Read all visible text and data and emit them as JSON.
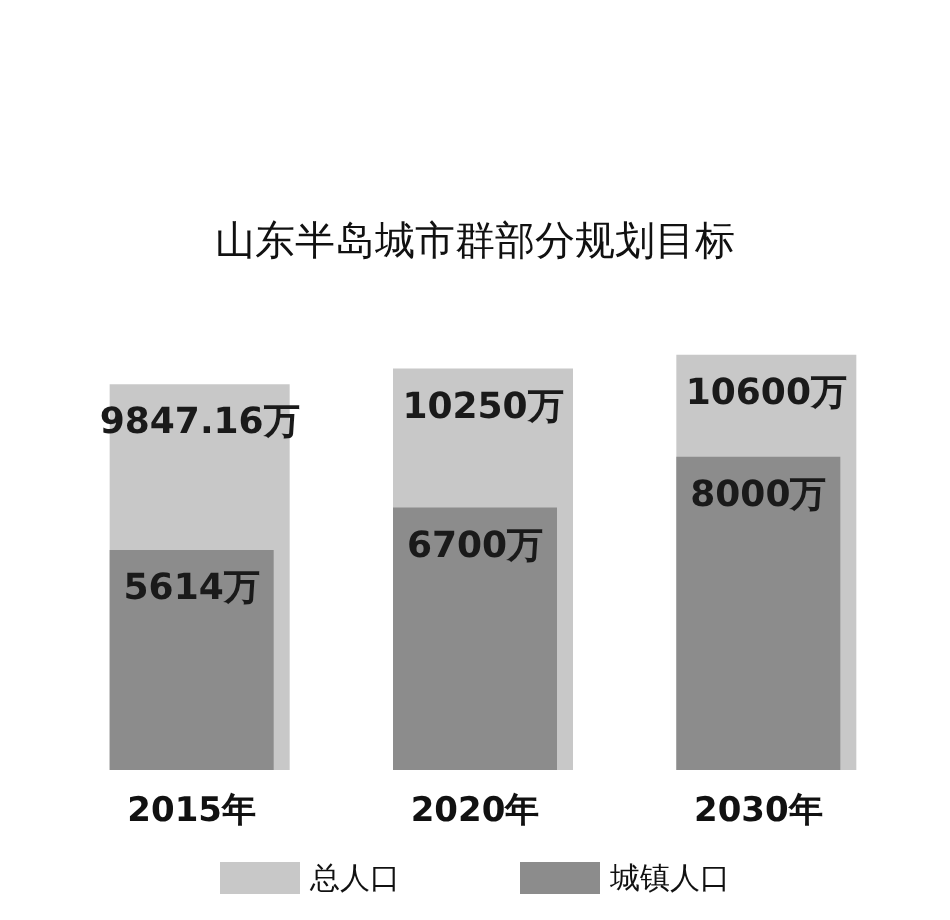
{
  "chart_data": {
    "type": "bar",
    "title": "山东半岛城市群部分规划目标",
    "categories": [
      "2015年",
      "2020年",
      "2030年"
    ],
    "legend": "bottom",
    "series": [
      {
        "name": "总人口",
        "color": "#c8c8c8",
        "values": [
          9847.16,
          10250,
          10600
        ],
        "value_labels": [
          "9847.16万",
          "10250万",
          "10600万"
        ]
      },
      {
        "name": "城镇人口",
        "color": "#8c8c8c",
        "values": [
          5614,
          6700,
          8000
        ],
        "value_labels": [
          "5614万",
          "6700万",
          "8000万"
        ]
      }
    ]
  }
}
